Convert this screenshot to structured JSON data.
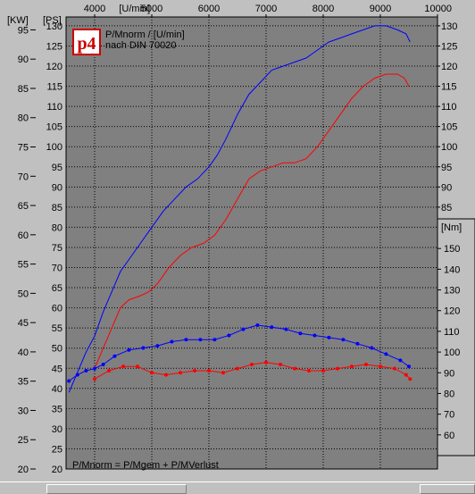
{
  "chart_data": {
    "type": "line",
    "logo": "p4",
    "annotation_lines": [
      "P/Mnorm / [U/min]",
      "nach DIN 70020"
    ],
    "formula": "P/Mnorm = P/Mgem + P/MVerlust",
    "x_unit_label": "[U/min]",
    "x_ticks": [
      4000,
      5000,
      6000,
      7000,
      8000,
      9000,
      10000
    ],
    "xlim": [
      3500,
      10000
    ],
    "kw_unit_label": "[KW]",
    "kw_ticks": [
      20,
      25,
      30,
      35,
      40,
      45,
      50,
      55,
      60,
      65,
      70,
      75,
      80,
      85,
      90,
      95
    ],
    "kw_range": [
      20,
      97.2
    ],
    "ps_unit_label": "[PS]",
    "ps_ticks": [
      20,
      25,
      30,
      35,
      40,
      45,
      50,
      55,
      60,
      65,
      70,
      75,
      80,
      85,
      90,
      95,
      100,
      105,
      110,
      115,
      120,
      125,
      130
    ],
    "ps_range": [
      20,
      132.2
    ],
    "nm_unit_label": "[Nm]",
    "nm_ticks": [
      60,
      70,
      80,
      90,
      100,
      110,
      120,
      130,
      140,
      150
    ],
    "nm_range": [
      50,
      160
    ],
    "series": [
      {
        "color": "#0000ff",
        "markers": false,
        "axis": "ps",
        "points": [
          [
            3550,
            39
          ],
          [
            3700,
            44
          ],
          [
            3850,
            49
          ],
          [
            4000,
            53
          ],
          [
            4150,
            59
          ],
          [
            4300,
            64
          ],
          [
            4450,
            69
          ],
          [
            4600,
            72
          ],
          [
            4800,
            76
          ],
          [
            5000,
            80
          ],
          [
            5200,
            84
          ],
          [
            5400,
            87
          ],
          [
            5600,
            90
          ],
          [
            5800,
            92
          ],
          [
            6000,
            95
          ],
          [
            6150,
            98
          ],
          [
            6300,
            102
          ],
          [
            6500,
            108
          ],
          [
            6700,
            113
          ],
          [
            6900,
            116
          ],
          [
            7100,
            119
          ],
          [
            7300,
            120
          ],
          [
            7500,
            121
          ],
          [
            7700,
            122
          ],
          [
            7900,
            124
          ],
          [
            8100,
            126
          ],
          [
            8300,
            127
          ],
          [
            8500,
            128
          ],
          [
            8700,
            129
          ],
          [
            8900,
            130
          ],
          [
            9100,
            130
          ],
          [
            9300,
            129
          ],
          [
            9450,
            128
          ],
          [
            9520,
            126
          ]
        ]
      },
      {
        "color": "#ff0000",
        "markers": false,
        "axis": "ps",
        "points": [
          [
            4000,
            45
          ],
          [
            4150,
            50
          ],
          [
            4300,
            55
          ],
          [
            4450,
            60
          ],
          [
            4600,
            62
          ],
          [
            4800,
            63
          ],
          [
            4950,
            64
          ],
          [
            5100,
            66
          ],
          [
            5300,
            70
          ],
          [
            5500,
            73
          ],
          [
            5700,
            75
          ],
          [
            5900,
            76
          ],
          [
            6100,
            78
          ],
          [
            6300,
            82
          ],
          [
            6500,
            87
          ],
          [
            6700,
            92
          ],
          [
            6900,
            94
          ],
          [
            7100,
            95
          ],
          [
            7300,
            96
          ],
          [
            7500,
            96
          ],
          [
            7700,
            97
          ],
          [
            7900,
            100
          ],
          [
            8100,
            104
          ],
          [
            8300,
            108
          ],
          [
            8500,
            112
          ],
          [
            8700,
            115
          ],
          [
            8900,
            117
          ],
          [
            9100,
            118
          ],
          [
            9300,
            118
          ],
          [
            9420,
            117
          ],
          [
            9500,
            115
          ]
        ]
      },
      {
        "color": "#0000ff",
        "markers": true,
        "axis": "nm",
        "points": [
          [
            3550,
            86
          ],
          [
            3700,
            89
          ],
          [
            3850,
            91
          ],
          [
            4000,
            92
          ],
          [
            4150,
            94
          ],
          [
            4350,
            98
          ],
          [
            4600,
            101
          ],
          [
            4850,
            102
          ],
          [
            5100,
            103
          ],
          [
            5350,
            105
          ],
          [
            5600,
            106
          ],
          [
            5850,
            106
          ],
          [
            6100,
            106
          ],
          [
            6350,
            108
          ],
          [
            6600,
            111
          ],
          [
            6850,
            113
          ],
          [
            7100,
            112
          ],
          [
            7350,
            111
          ],
          [
            7600,
            109
          ],
          [
            7850,
            108
          ],
          [
            8100,
            107
          ],
          [
            8350,
            106
          ],
          [
            8600,
            104
          ],
          [
            8850,
            102
          ],
          [
            9100,
            99
          ],
          [
            9350,
            96
          ],
          [
            9500,
            93
          ]
        ]
      },
      {
        "color": "#ff0000",
        "markers": true,
        "axis": "nm",
        "points": [
          [
            4000,
            87
          ],
          [
            4250,
            91
          ],
          [
            4500,
            93
          ],
          [
            4750,
            93
          ],
          [
            5000,
            90
          ],
          [
            5250,
            89
          ],
          [
            5500,
            90
          ],
          [
            5750,
            91
          ],
          [
            6000,
            91
          ],
          [
            6250,
            90
          ],
          [
            6500,
            92
          ],
          [
            6750,
            94
          ],
          [
            7000,
            95
          ],
          [
            7250,
            94
          ],
          [
            7500,
            92
          ],
          [
            7750,
            91
          ],
          [
            8000,
            91
          ],
          [
            8250,
            92
          ],
          [
            8500,
            93
          ],
          [
            8750,
            94
          ],
          [
            9000,
            93
          ],
          [
            9250,
            92
          ],
          [
            9450,
            89
          ],
          [
            9520,
            87
          ]
        ]
      }
    ]
  }
}
